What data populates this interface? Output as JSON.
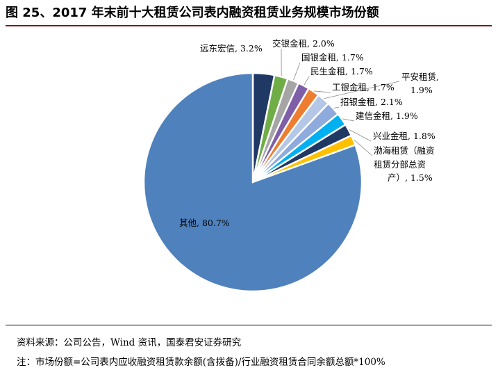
{
  "title": "图 25、2017 年末前十大租赁公司表内融资租赁业务规模市场份额",
  "source": "资料来源：公司公告，Wind 资讯，国泰君安证券研究",
  "footnote": "注：市场份额=公司表内应收融资租赁款余额(含拨备)/行业融资租赁合同余额总额*100%",
  "chart_data": {
    "type": "pie",
    "title": "",
    "unit": "%",
    "slices": [
      {
        "label": "远东宏信",
        "value": 3.2,
        "text": "远东宏信, 3.2%",
        "color": "#203864"
      },
      {
        "label": "交银金租",
        "value": 2.0,
        "text": "交银金租, 2.0%",
        "color": "#70ad47"
      },
      {
        "label": "国银金租",
        "value": 1.7,
        "text": "国银金租, 1.7%",
        "color": "#a5a5a5"
      },
      {
        "label": "民生金租",
        "value": 1.7,
        "text": "民生金租, 1.7%",
        "color": "#7f5ea8"
      },
      {
        "label": "工银金租",
        "value": 1.7,
        "text": "工银金租, 1.7%",
        "color": "#ed7d31"
      },
      {
        "label": "平安租赁",
        "value": 1.9,
        "text": "平安租赁, 1.9%",
        "color": "#b4c7e7"
      },
      {
        "label": "招银金租",
        "value": 2.1,
        "text": "招银金租, 2.1%",
        "color": "#8faadc"
      },
      {
        "label": "建信金租",
        "value": 1.9,
        "text": "建信金租, 1.9%",
        "color": "#00b0f0"
      },
      {
        "label": "兴业金租",
        "value": 1.8,
        "text": "兴业金租, 1.8%",
        "color": "#1f3864"
      },
      {
        "label": "渤海租赁（融资租赁分部总资产）",
        "value": 1.5,
        "text": "渤海租赁（融资租赁分部总资产）, 1.5%",
        "color": "#ffc000"
      },
      {
        "label": "其他",
        "value": 80.7,
        "text": "其他, 80.7%",
        "color": "#4f81bd"
      }
    ]
  }
}
